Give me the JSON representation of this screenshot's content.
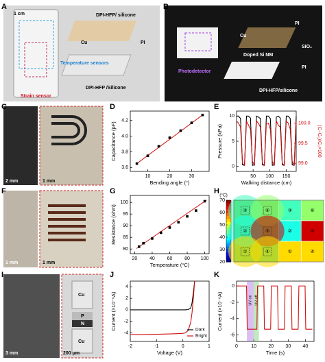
{
  "panel_labels": [
    "A",
    "B",
    "C",
    "D",
    "E",
    "F",
    "G",
    "H",
    "I",
    "J",
    "K"
  ],
  "photo_labels": {
    "A": [
      "1 cm",
      "DPI-HFP/ silicone",
      "Cu",
      "PI",
      "Temperature sensors",
      "Strain sensor",
      "DPI-HFP /Silicone"
    ],
    "B": [
      "PI",
      "Cu",
      "SiO₂",
      "Doped Si NM",
      "PI",
      "DPI-HFP/silicone",
      "Photodetector"
    ],
    "C": [
      "2 mm",
      "1 mm"
    ],
    "F": [
      "1 mm",
      "1 mm"
    ],
    "I": [
      "3 mm",
      "200 μm",
      "Cu",
      "P",
      "N",
      "Cu"
    ]
  },
  "chart_data": [
    {
      "type": "scatter",
      "xlabel": "Bending angle (°)",
      "ylabel": "Capacitance (pF)",
      "x": [
        5,
        10,
        15,
        20,
        25,
        30,
        35
      ],
      "values": [
        3.65,
        3.75,
        3.87,
        3.98,
        4.07,
        4.17,
        4.27
      ],
      "color": "#000000",
      "fit_x": [
        5,
        35
      ],
      "fit_values": [
        3.65,
        4.27
      ],
      "fit_color": "#d01010",
      "xlim": [
        2,
        38
      ],
      "xticks": [
        10,
        20,
        30
      ],
      "ylim": [
        3.55,
        4.32
      ],
      "yticks": [
        3.6,
        3.8,
        {
          "value": 4,
          "label": "4.0"
        },
        4.2
      ]
    },
    {
      "type": "line",
      "xlabel": "Walking distance (cm)",
      "ylabel": "Pressure (kPa)",
      "y2label": "(C−C₀)/C₀×100",
      "x": [
        0,
        6,
        12,
        18,
        24,
        30,
        36,
        42,
        48,
        54,
        60,
        66,
        72,
        78,
        84,
        90,
        96,
        102,
        108,
        114,
        120,
        126,
        132,
        138,
        144,
        150,
        156,
        162,
        168,
        174,
        180
      ],
      "series": [
        {
          "color": "#000000",
          "values": [
            10,
            10,
            9.5,
            0.3,
            0.2,
            10,
            10,
            9.6,
            0.2,
            0.3,
            10,
            9.8,
            9.5,
            0.3,
            0.2,
            10,
            10,
            9.5,
            0.2,
            0.3,
            9.8,
            10,
            9.6,
            0.3,
            0.2,
            10,
            10,
            9.5,
            0.3,
            0.2,
            10
          ]
        },
        {
          "color": "#d01010",
          "axis": "y2",
          "values": [
            100.05,
            100.0,
            99.9,
            99.0,
            98.95,
            100.05,
            99.95,
            99.85,
            99.05,
            98.95,
            100.05,
            100.0,
            99.9,
            99.0,
            98.95,
            100.0,
            100.0,
            99.85,
            99.05,
            98.95,
            100.05,
            99.95,
            99.9,
            99.0,
            98.95,
            100.05,
            100.0,
            99.85,
            99.05,
            98.95,
            100.05
          ]
        }
      ],
      "xlim": [
        0,
        180
      ],
      "xticks": [
        50,
        100,
        150
      ],
      "ylim": [
        -1,
        11
      ],
      "yticks": [
        0,
        5,
        10
      ],
      "y2lim": [
        98.8,
        100.3
      ],
      "y2ticks": [
        {
          "value": 99,
          "label": "99.0"
        },
        99.5,
        {
          "value": 100,
          "label": "100.0"
        }
      ]
    },
    {
      "type": "scatter",
      "xlabel": "Temperature (°C)",
      "ylabel": "Resistance (ohm)",
      "x": [
        25,
        30,
        40,
        50,
        60,
        70,
        80,
        90,
        100
      ],
      "values": [
        81,
        82.5,
        84.5,
        87,
        89.2,
        91.5,
        94,
        96.5,
        100.5
      ],
      "color": "#000000",
      "fit_x": [
        22,
        102
      ],
      "fit_values": [
        80.2,
        101
      ],
      "fit_color": "#d01010",
      "xlim": [
        15,
        105
      ],
      "xticks": [
        20,
        40,
        60,
        80,
        100
      ],
      "ylim": [
        78,
        103
      ],
      "yticks": [
        80,
        85,
        90,
        95,
        100
      ]
    },
    {
      "type": "heatmap",
      "unit": "(°C)",
      "clim": [
        20,
        70
      ],
      "cticks": [
        20,
        30,
        40,
        50,
        60,
        70
      ],
      "cells": [
        [
          {
            "label": "③",
            "value": 42
          },
          {
            "label": "⑥",
            "value": 46
          }
        ],
        [
          {
            "label": "②",
            "value": 40
          },
          {
            "label": "⑤",
            "value": 66
          }
        ],
        [
          {
            "label": "①",
            "value": 53
          },
          {
            "label": "④",
            "value": 53
          }
        ]
      ]
    },
    {
      "type": "line",
      "xlabel": "Voltage (V)",
      "ylabel": "Current (×10⁻⁶A)",
      "legend": "lower right",
      "x": [
        -2,
        -1.5,
        -1,
        -0.5,
        0,
        0.1,
        0.2,
        0.3,
        0.35,
        0.4,
        0.45
      ],
      "series": [
        {
          "name": "Dark",
          "color": "#000000",
          "values": [
            0,
            0,
            0,
            0,
            0,
            0,
            0.05,
            0.3,
            1.2,
            3,
            5
          ]
        },
        {
          "name": "Bright",
          "color": "#d01010",
          "values": [
            -4.3,
            -4.3,
            -4.25,
            -4.2,
            -4.1,
            -4.0,
            -3.6,
            -2.2,
            -0.5,
            2,
            5
          ]
        }
      ],
      "xlim": [
        -2,
        1
      ],
      "xticks": [
        -2,
        -1,
        0,
        1
      ],
      "ylim": [
        -5.5,
        5
      ],
      "yticks": [
        -4,
        -2,
        0,
        2,
        4
      ]
    },
    {
      "type": "line",
      "xlabel": "Time (s)",
      "ylabel": "Current (×10⁻⁶A)",
      "x": [
        0,
        5.8,
        6.2,
        11.8,
        12.2,
        15.8,
        16.2,
        19.8,
        20.2,
        23.8,
        24.2,
        27.8,
        28.2,
        31.8,
        32.2,
        35.8,
        36.2,
        39.8,
        40.2,
        44
      ],
      "series": [
        {
          "color": "#d01010",
          "values": [
            0,
            0,
            -5.3,
            -5.3,
            0,
            0,
            -5.3,
            -5.3,
            0,
            0,
            -5.3,
            -5.3,
            0,
            0,
            -5.3,
            -5.3,
            0,
            0,
            -5.3,
            -5.3
          ]
        }
      ],
      "shades": [
        {
          "label": "UV on",
          "from": 6,
          "to": 10,
          "color": "#b070e0"
        },
        {
          "label": "UV off",
          "from": 10,
          "to": 13,
          "color": "#70d070"
        }
      ],
      "xlim": [
        0,
        45
      ],
      "xticks": [
        0,
        10,
        20,
        30,
        40
      ],
      "ylim": [
        -6.8,
        0.6
      ],
      "yticks": [
        0,
        -2,
        -4,
        -6
      ]
    }
  ]
}
